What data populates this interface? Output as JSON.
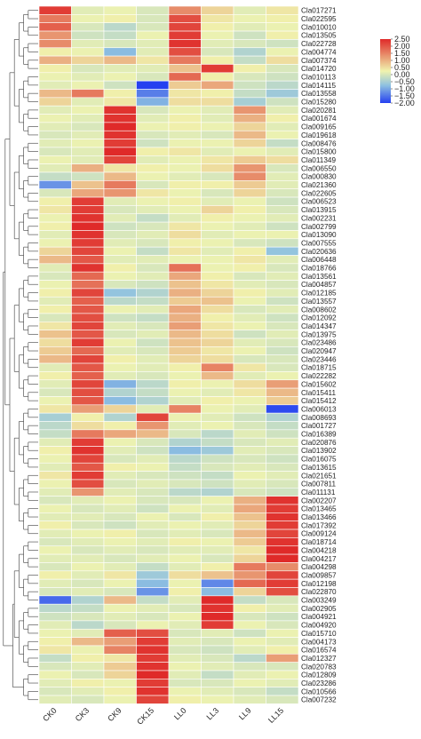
{
  "chart_data": {
    "type": "heatmap",
    "columns": [
      "CK0",
      "CK3",
      "CK9",
      "CK15",
      "LL0",
      "LL3",
      "LL9",
      "LL15"
    ],
    "rows": [
      "Cla017271",
      "Cla022595",
      "Cla010010",
      "Cla013505",
      "Cla022728",
      "Cla004774",
      "Cla007374",
      "Cla014720",
      "Cla010113",
      "Cla014115",
      "Cla013558",
      "Cla015280",
      "Cla020281",
      "Cla001674",
      "Cla009165",
      "Cla019618",
      "Cla008476",
      "Cla015800",
      "Cla011349",
      "Cla006550",
      "Cla000830",
      "Cla021360",
      "Cla022605",
      "Cla006523",
      "Cla013915",
      "Cla002231",
      "Cla002799",
      "Cla013090",
      "Cla007555",
      "Cla020636",
      "Cla006448",
      "Cla018766",
      "Cla013561",
      "Cla004857",
      "Cla012185",
      "Cla013557",
      "Cla008602",
      "Cla012092",
      "Cla014347",
      "Cla013975",
      "Cla023486",
      "Cla020947",
      "Cla023446",
      "Cla018715",
      "Cla022282",
      "Cla015602",
      "Cla015411",
      "Cla015412",
      "Cla006013",
      "Cla008693",
      "Cla001727",
      "Cla016389",
      "Cla020876",
      "Cla013902",
      "Cla016075",
      "Cla013615",
      "Cla021651",
      "Cla007811",
      "Cla011131",
      "Cla002207",
      "Cla013465",
      "Cla013466",
      "Cla017392",
      "Cla009124",
      "Cla018714",
      "Cla004218",
      "Cla004217",
      "Cla004298",
      "Cla009857",
      "Cla012198",
      "Cla022870",
      "Cla003249",
      "Cla002905",
      "Cla004921",
      "Cla004920",
      "Cla015710",
      "Cla004173",
      "Cla016574",
      "Cla012327",
      "Cla020783",
      "Cla012809",
      "Cla023286",
      "Cla010566",
      "Cla007232"
    ],
    "values": [
      [
        2.3,
        0.1,
        0.2,
        0.0,
        1.4,
        0.6,
        0.1,
        0.4
      ],
      [
        1.6,
        0.2,
        0.3,
        0.0,
        2.1,
        0.4,
        0.2,
        0.3
      ],
      [
        1.9,
        0.0,
        -0.3,
        0.0,
        2.2,
        0.3,
        0.1,
        0.2
      ],
      [
        1.3,
        -0.1,
        -0.2,
        0.2,
        2.3,
        0.2,
        -0.1,
        0.3
      ],
      [
        1.4,
        0.1,
        0.0,
        0.1,
        2.4,
        0.1,
        0.0,
        -0.1
      ],
      [
        0.3,
        0.2,
        -0.8,
        0.1,
        2.1,
        0.0,
        -0.4,
        0.2
      ],
      [
        1.0,
        0.6,
        0.9,
        0.4,
        1.6,
        0.3,
        -0.2,
        0.5
      ],
      [
        0.3,
        0.0,
        0.1,
        0.1,
        0.8,
        2.3,
        0.3,
        0.0
      ],
      [
        0.2,
        0.1,
        0.2,
        0.0,
        1.8,
        0.3,
        0.0,
        -0.1
      ],
      [
        0.1,
        0.2,
        -0.1,
        -2.0,
        0.7,
        1.1,
        -0.1,
        -0.3
      ],
      [
        0.9,
        1.6,
        0.3,
        -1.4,
        0.4,
        0.3,
        -0.2,
        -0.6
      ],
      [
        0.6,
        0.1,
        0.4,
        -0.9,
        0.5,
        0.5,
        -0.5,
        -0.1
      ],
      [
        0.1,
        0.2,
        2.4,
        0.0,
        0.2,
        0.1,
        1.3,
        0.1
      ],
      [
        0.2,
        0.1,
        2.4,
        0.1,
        0.3,
        0.1,
        1.0,
        0.3
      ],
      [
        0.1,
        0.0,
        2.5,
        0.2,
        0.3,
        0.2,
        0.6,
        0.1
      ],
      [
        0.0,
        0.1,
        2.4,
        0.0,
        0.1,
        0.0,
        0.9,
        0.2
      ],
      [
        0.1,
        0.2,
        2.3,
        -0.1,
        0.2,
        0.2,
        0.6,
        -0.2
      ],
      [
        0.0,
        0.1,
        2.5,
        0.3,
        0.4,
        0.1,
        0.2,
        0.1
      ],
      [
        0.2,
        0.1,
        2.2,
        0.1,
        0.2,
        0.4,
        0.7,
        0.5
      ],
      [
        0.1,
        1.0,
        0.4,
        0.3,
        0.2,
        0.5,
        1.3,
        0.0
      ],
      [
        -0.2,
        -0.1,
        0.9,
        0.2,
        0.1,
        0.0,
        1.4,
        0.1
      ],
      [
        -1.2,
        0.8,
        1.6,
        0.0,
        0.3,
        0.3,
        0.7,
        0.1
      ],
      [
        0.0,
        1.1,
        1.3,
        0.4,
        0.2,
        0.0,
        0.6,
        0.0
      ],
      [
        0.3,
        2.3,
        0.1,
        0.2,
        0.3,
        0.1,
        0.2,
        -0.1
      ],
      [
        0.4,
        2.3,
        0.0,
        0.1,
        0.2,
        0.6,
        0.3,
        0.0
      ],
      [
        0.2,
        2.4,
        0.1,
        -0.2,
        0.1,
        0.3,
        0.2,
        0.1
      ],
      [
        0.3,
        2.5,
        -0.1,
        0.0,
        0.4,
        0.2,
        0.1,
        -0.1
      ],
      [
        0.1,
        2.4,
        0.0,
        0.1,
        0.5,
        0.1,
        0.2,
        0.2
      ],
      [
        0.2,
        2.3,
        0.1,
        0.0,
        0.3,
        0.2,
        0.0,
        -0.1
      ],
      [
        0.6,
        2.2,
        0.2,
        -0.2,
        0.4,
        0.1,
        0.3,
        -0.7
      ],
      [
        0.9,
        2.0,
        0.1,
        0.1,
        0.2,
        0.2,
        0.4,
        0.1
      ],
      [
        0.1,
        2.4,
        0.3,
        0.0,
        1.7,
        0.2,
        0.3,
        0.0
      ],
      [
        0.0,
        1.8,
        0.2,
        0.1,
        1.1,
        0.3,
        0.0,
        0.1
      ],
      [
        0.2,
        1.7,
        0.0,
        -0.1,
        0.8,
        0.4,
        0.1,
        0.0
      ],
      [
        0.3,
        2.2,
        -0.7,
        -0.4,
        1.0,
        0.6,
        0.3,
        0.1
      ],
      [
        0.1,
        1.9,
        -0.3,
        -0.2,
        0.7,
        0.8,
        0.2,
        -0.1
      ],
      [
        0.3,
        2.0,
        0.2,
        0.1,
        1.1,
        0.5,
        0.0,
        0.1
      ],
      [
        0.0,
        2.1,
        -0.1,
        -0.2,
        1.0,
        0.3,
        0.1,
        -0.1
      ],
      [
        0.4,
        2.2,
        0.1,
        0.0,
        1.2,
        0.4,
        0.2,
        0.0
      ],
      [
        0.8,
        2.0,
        0.0,
        0.1,
        0.9,
        0.5,
        -0.1,
        0.1
      ],
      [
        0.5,
        2.3,
        0.2,
        -0.1,
        0.8,
        0.6,
        0.1,
        0.0
      ],
      [
        0.7,
        1.8,
        0.1,
        0.0,
        0.7,
        0.4,
        0.2,
        -0.1
      ],
      [
        0.9,
        2.2,
        0.3,
        0.1,
        0.6,
        0.5,
        0.0,
        0.0
      ],
      [
        0.1,
        2.0,
        0.2,
        0.1,
        0.3,
        1.5,
        0.4,
        0.0
      ],
      [
        0.3,
        1.9,
        0.1,
        0.0,
        0.2,
        0.9,
        0.1,
        0.2
      ],
      [
        0.1,
        2.2,
        -0.9,
        -0.3,
        0.3,
        0.2,
        0.5,
        1.2
      ],
      [
        0.0,
        2.1,
        -0.4,
        -0.2,
        0.2,
        0.1,
        0.4,
        0.9
      ],
      [
        0.2,
        2.0,
        -0.8,
        -0.4,
        0.1,
        0.3,
        0.2,
        0.7
      ],
      [
        0.4,
        1.2,
        0.6,
        0.1,
        1.5,
        0.2,
        0.1,
        -1.9
      ],
      [
        -0.5,
        0.3,
        -0.4,
        2.2,
        0.2,
        0.1,
        -0.1,
        -0.4
      ],
      [
        -0.3,
        0.5,
        0.3,
        1.3,
        0.1,
        0.2,
        0.0,
        -0.2
      ],
      [
        -0.2,
        1.6,
        1.1,
        0.9,
        0.0,
        -0.3,
        0.1,
        -0.1
      ],
      [
        0.1,
        2.3,
        0.2,
        0.0,
        -0.4,
        -0.2,
        0.0,
        0.1
      ],
      [
        0.3,
        2.4,
        0.1,
        -0.1,
        -0.8,
        -0.6,
        0.1,
        0.0
      ],
      [
        0.2,
        2.2,
        0.0,
        0.1,
        -0.3,
        -0.1,
        0.0,
        -0.1
      ],
      [
        0.1,
        2.0,
        0.3,
        0.2,
        -0.2,
        0.0,
        0.1,
        0.0
      ],
      [
        0.4,
        2.3,
        0.1,
        0.0,
        -0.1,
        -0.2,
        0.2,
        0.1
      ],
      [
        0.2,
        2.1,
        0.0,
        0.1,
        0.0,
        -0.1,
        0.1,
        0.0
      ],
      [
        0.1,
        1.3,
        0.1,
        0.0,
        -0.3,
        -0.4,
        0.0,
        -0.1
      ],
      [
        0.0,
        0.1,
        0.2,
        0.0,
        0.0,
        0.2,
        1.0,
        2.4
      ],
      [
        0.2,
        0.0,
        0.1,
        -0.1,
        0.2,
        0.1,
        1.1,
        2.3
      ],
      [
        0.1,
        0.1,
        0.0,
        0.2,
        0.0,
        0.3,
        0.8,
        2.4
      ],
      [
        0.3,
        0.0,
        -0.1,
        0.1,
        0.2,
        0.1,
        0.6,
        2.3
      ],
      [
        0.1,
        0.2,
        0.3,
        0.0,
        0.1,
        0.0,
        0.9,
        2.2
      ],
      [
        0.0,
        0.1,
        0.2,
        0.1,
        0.3,
        0.2,
        0.7,
        2.4
      ],
      [
        0.2,
        0.0,
        0.1,
        0.0,
        0.1,
        0.1,
        0.4,
        2.5
      ],
      [
        0.1,
        0.1,
        0.0,
        0.1,
        0.2,
        0.0,
        0.6,
        2.5
      ],
      [
        0.0,
        0.2,
        0.1,
        -0.2,
        0.1,
        0.3,
        1.6,
        1.4
      ],
      [
        0.3,
        0.1,
        0.4,
        -0.6,
        0.5,
        0.8,
        1.3,
        2.2
      ],
      [
        0.1,
        0.0,
        0.2,
        -0.8,
        0.2,
        -1.3,
        1.8,
        2.3
      ],
      [
        0.0,
        0.1,
        0.0,
        -1.2,
        0.3,
        -0.8,
        0.6,
        2.1
      ],
      [
        -1.6,
        -0.4,
        0.9,
        -0.2,
        0.1,
        2.5,
        -0.2,
        0.0
      ],
      [
        -0.3,
        -0.2,
        0.2,
        0.1,
        0.0,
        2.4,
        0.3,
        0.1
      ],
      [
        -0.1,
        0.0,
        0.1,
        0.0,
        0.2,
        2.5,
        0.0,
        -0.1
      ],
      [
        0.1,
        -0.3,
        0.0,
        0.2,
        0.1,
        2.3,
        0.2,
        0.0
      ],
      [
        0.2,
        0.1,
        1.9,
        2.1,
        0.0,
        0.1,
        -0.1,
        0.2
      ],
      [
        0.3,
        0.9,
        1.2,
        2.3,
        0.1,
        0.0,
        0.2,
        0.1
      ],
      [
        0.4,
        0.2,
        1.5,
        2.4,
        0.0,
        -0.1,
        0.1,
        0.3
      ],
      [
        -0.2,
        0.3,
        0.4,
        2.3,
        0.1,
        0.0,
        -0.3,
        1.2
      ],
      [
        0.0,
        0.1,
        0.7,
        2.4,
        0.2,
        0.1,
        0.0,
        0.0
      ],
      [
        0.2,
        0.0,
        0.6,
        2.5,
        0.1,
        -0.2,
        0.1,
        0.2
      ],
      [
        0.1,
        0.3,
        0.2,
        2.3,
        0.0,
        0.0,
        0.2,
        0.1
      ],
      [
        0.0,
        0.1,
        0.3,
        2.4,
        0.2,
        0.1,
        0.0,
        -0.2
      ],
      [
        0.1,
        0.0,
        0.2,
        2.2,
        0.3,
        0.2,
        0.1,
        0.0
      ]
    ],
    "colorbar": {
      "ticks": [
        2.5,
        2.0,
        1.5,
        1.0,
        0.5,
        0.0,
        -0.5,
        -1.0,
        -1.5,
        -2.0
      ],
      "tick_labels": [
        "2.50",
        "2.00",
        "1.50",
        "1.00",
        "0.50",
        "0.00",
        "−0.50",
        "−1.00",
        "−1.50",
        "−2.00"
      ],
      "range": [
        -2.0,
        2.5
      ],
      "colors": [
        "#2540f0",
        "#8fc1e0",
        "#f0f3ae",
        "#df2a29"
      ]
    },
    "dendrogram": "row"
  }
}
